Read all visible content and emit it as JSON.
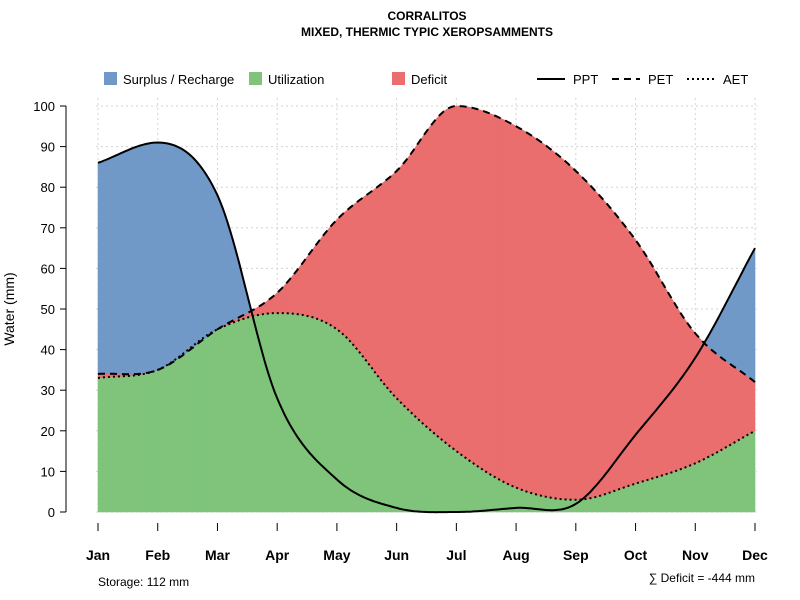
{
  "chart_data": {
    "type": "area",
    "title": "CORRALITOS",
    "subtitle": "MIXED, THERMIC TYPIC XEROPSAMMENTS",
    "ylabel": "Water (mm)",
    "xlabel": "",
    "ylim": [
      0,
      100
    ],
    "yticks": [
      "0",
      "10",
      "20",
      "30",
      "40",
      "50",
      "60",
      "70",
      "80",
      "90",
      "100"
    ],
    "categories": [
      "Jan",
      "Feb",
      "Mar",
      "Apr",
      "May",
      "Jun",
      "Jul",
      "Aug",
      "Sep",
      "Oct",
      "Nov",
      "Dec"
    ],
    "series": [
      {
        "name": "PPT",
        "style": "solid",
        "values": [
          86,
          91,
          78,
          28,
          8,
          1,
          0,
          1,
          2,
          19,
          38,
          65
        ]
      },
      {
        "name": "PET",
        "style": "dashed",
        "values": [
          34,
          35,
          45,
          54,
          72,
          84,
          100,
          95,
          84,
          67,
          44,
          32
        ]
      },
      {
        "name": "AET",
        "style": "dotted",
        "values": [
          33,
          35,
          45,
          49,
          45,
          28,
          15,
          6,
          3,
          7,
          12,
          20
        ]
      }
    ],
    "legend": {
      "fills": [
        {
          "label": "Surplus / Recharge",
          "color": "#7199c8"
        },
        {
          "label": "Utilization",
          "color": "#7fc47a"
        },
        {
          "label": "Deficit",
          "color": "#eb6e6e"
        }
      ],
      "lines": [
        {
          "label": "PPT",
          "style": "solid"
        },
        {
          "label": "PET",
          "style": "dashed"
        },
        {
          "label": "AET",
          "style": "dotted"
        }
      ]
    },
    "annotations": {
      "storage": "Storage: 112 mm",
      "deficit": "∑ Deficit = -444 mm"
    }
  }
}
